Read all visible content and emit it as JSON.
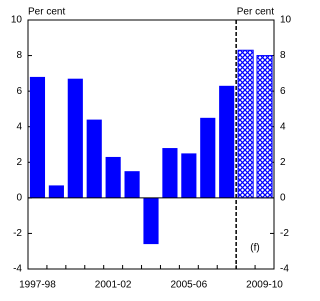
{
  "chart_data": {
    "type": "bar",
    "categories": [
      "1997-98",
      null,
      null,
      null,
      "2001-02",
      null,
      null,
      null,
      "2005-06",
      null,
      null,
      null,
      "2009-10"
    ],
    "values": [
      6.8,
      0.7,
      6.7,
      4.4,
      2.3,
      1.5,
      -2.6,
      2.8,
      2.5,
      4.5,
      6.3,
      8.3,
      8.0
    ],
    "styles": [
      "solid",
      "solid",
      "solid",
      "solid",
      "solid",
      "solid",
      "solid",
      "solid",
      "solid",
      "solid",
      "solid",
      "hatched",
      "hatched"
    ],
    "color": "#0000ff",
    "y_label_left": "Per cent",
    "y_label_right": "Per cent",
    "annotation": "(f)",
    "ylim": [
      -4,
      10
    ],
    "yticks": [
      -4,
      -2,
      0,
      2,
      4,
      6,
      8,
      10
    ]
  }
}
